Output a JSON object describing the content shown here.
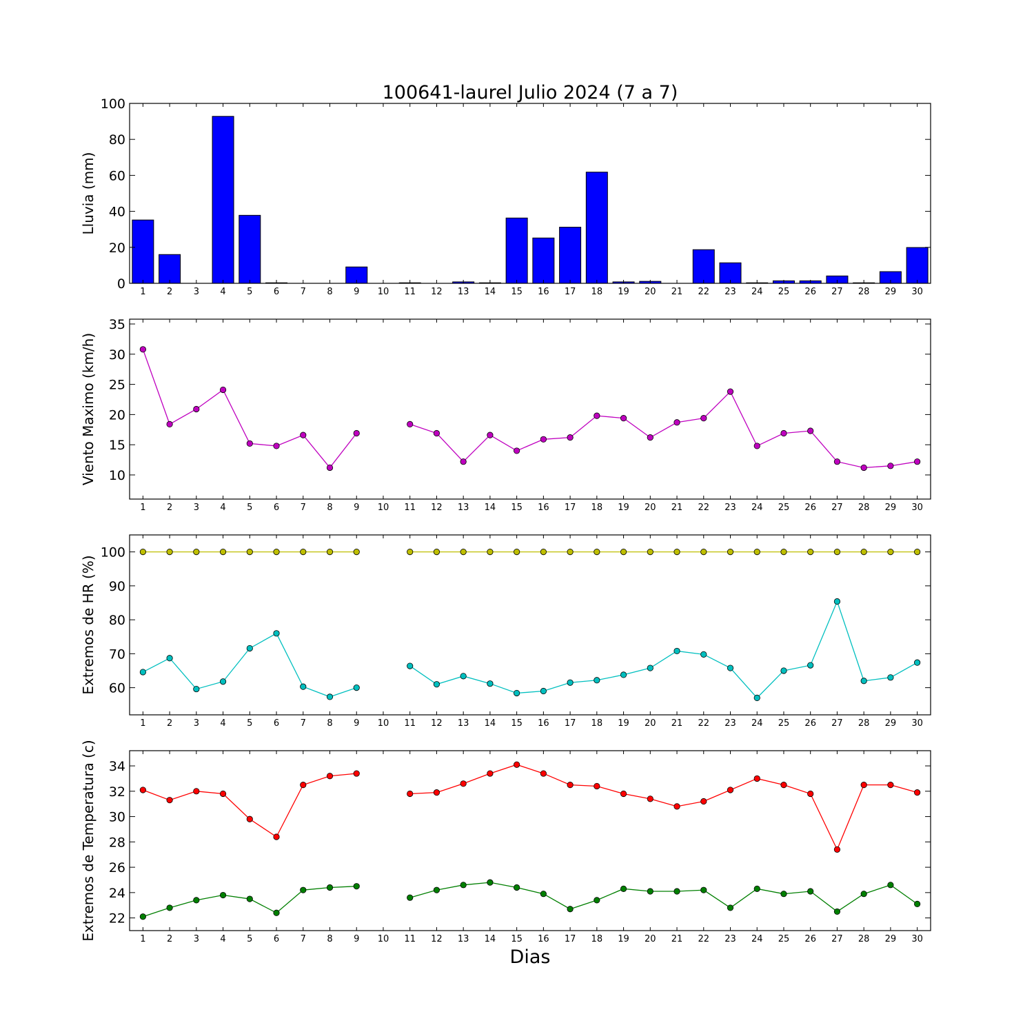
{
  "figure": {
    "title": "100641-laurel Julio 2024  (7 a 7)",
    "xlabel": "Dias"
  },
  "chart_data": [
    {
      "type": "bar",
      "ylabel": "Lluvia (mm)",
      "ylim": [
        0,
        100
      ],
      "yticks": [
        0,
        20,
        40,
        60,
        80,
        100
      ],
      "categories": [
        "1",
        "2",
        "3",
        "4",
        "5",
        "6",
        "7",
        "8",
        "9",
        "10",
        "11",
        "12",
        "13",
        "14",
        "15",
        "16",
        "17",
        "18",
        "19",
        "20",
        "21",
        "22",
        "23",
        "24",
        "25",
        "26",
        "27",
        "28",
        "29",
        "30"
      ],
      "values": [
        35.2,
        16,
        0,
        92.8,
        37.8,
        0.3,
        0,
        0,
        9.1,
        0,
        0.3,
        0,
        0.8,
        0.3,
        36.3,
        25.2,
        31.2,
        61.8,
        0.8,
        1.1,
        0,
        18.7,
        11.4,
        0.3,
        1.4,
        1.4,
        4.1,
        0.3,
        6.5,
        19.9
      ],
      "color": "#0000ff"
    },
    {
      "type": "line",
      "ylabel": "Viento Maximo (km/h)",
      "ylim": [
        6,
        35.8
      ],
      "yticks": [
        10,
        15,
        20,
        25,
        30,
        35
      ],
      "categories": [
        "1",
        "2",
        "3",
        "4",
        "5",
        "6",
        "7",
        "8",
        "9",
        "10",
        "11",
        "12",
        "13",
        "14",
        "15",
        "16",
        "17",
        "18",
        "19",
        "20",
        "21",
        "22",
        "23",
        "24",
        "25",
        "26",
        "27",
        "28",
        "29",
        "30"
      ],
      "series": [
        {
          "color": "#bf00bf",
          "values": [
            30.8,
            18.4,
            20.9,
            24.1,
            15.2,
            14.8,
            16.6,
            11.2,
            16.9,
            null,
            18.4,
            16.9,
            12.2,
            16.6,
            14.0,
            15.9,
            16.2,
            19.8,
            19.4,
            16.2,
            18.7,
            19.4,
            23.8,
            14.8,
            16.9,
            17.3,
            12.2,
            11.2,
            11.5,
            12.2
          ]
        }
      ]
    },
    {
      "type": "line",
      "ylabel": "Extremos de HR (%)",
      "ylim": [
        52,
        105
      ],
      "yticks": [
        60,
        70,
        80,
        90,
        100
      ],
      "categories": [
        "1",
        "2",
        "3",
        "4",
        "5",
        "6",
        "7",
        "8",
        "9",
        "10",
        "11",
        "12",
        "13",
        "14",
        "15",
        "16",
        "17",
        "18",
        "19",
        "20",
        "21",
        "22",
        "23",
        "24",
        "25",
        "26",
        "27",
        "28",
        "29",
        "30"
      ],
      "series": [
        {
          "color": "#bfbf00",
          "values": [
            100,
            100,
            100,
            100,
            100,
            100,
            100,
            100,
            100,
            null,
            100,
            100,
            100,
            100,
            100,
            100,
            100,
            100,
            100,
            100,
            100,
            100,
            100,
            100,
            100,
            100,
            100,
            100,
            100,
            100
          ]
        },
        {
          "color": "#00bfbf",
          "values": [
            64.6,
            68.7,
            59.6,
            61.8,
            71.6,
            76.0,
            60.3,
            57.3,
            60.0,
            null,
            66.4,
            61.0,
            63.4,
            61.2,
            58.4,
            59.0,
            61.5,
            62.2,
            63.8,
            65.8,
            70.8,
            69.8,
            65.8,
            57.0,
            65.0,
            66.6,
            85.4,
            62.0,
            63.0,
            67.4
          ]
        }
      ]
    },
    {
      "type": "line",
      "ylabel": "Extremos de Temperatura (c)",
      "ylim": [
        21,
        35.2
      ],
      "yticks": [
        22,
        24,
        26,
        28,
        30,
        32,
        34
      ],
      "categories": [
        "1",
        "2",
        "3",
        "4",
        "5",
        "6",
        "7",
        "8",
        "9",
        "10",
        "11",
        "12",
        "13",
        "14",
        "15",
        "16",
        "17",
        "18",
        "19",
        "20",
        "21",
        "22",
        "23",
        "24",
        "25",
        "26",
        "27",
        "28",
        "29",
        "30"
      ],
      "series": [
        {
          "color": "#ff0000",
          "values": [
            32.1,
            31.3,
            32.0,
            31.8,
            29.8,
            28.4,
            32.5,
            33.2,
            33.4,
            null,
            31.8,
            31.9,
            32.6,
            33.4,
            34.1,
            33.4,
            32.5,
            32.4,
            31.8,
            31.4,
            30.8,
            31.2,
            32.1,
            33.0,
            32.5,
            31.8,
            27.4,
            32.5,
            32.5,
            31.9
          ]
        },
        {
          "color": "#007f00",
          "values": [
            22.1,
            22.8,
            23.4,
            23.8,
            23.5,
            22.4,
            24.2,
            24.4,
            24.5,
            null,
            23.6,
            24.2,
            24.6,
            24.8,
            24.4,
            23.9,
            22.7,
            23.4,
            24.3,
            24.1,
            24.1,
            24.2,
            22.8,
            24.3,
            23.9,
            24.1,
            22.5,
            23.9,
            24.6,
            23.1
          ]
        }
      ]
    }
  ]
}
